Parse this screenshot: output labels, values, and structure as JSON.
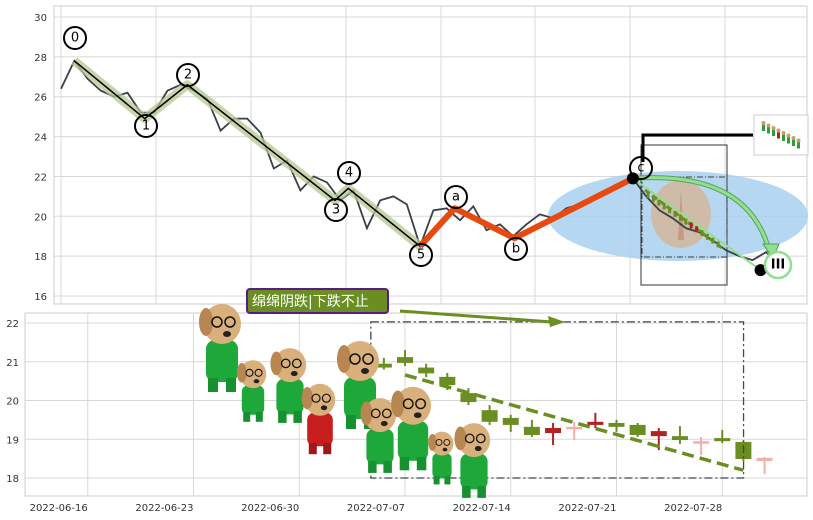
{
  "chart_data": [
    {
      "type": "line",
      "title": "",
      "ylim": [
        15.5,
        30.5
      ],
      "yticks": [
        16,
        18,
        20,
        22,
        24,
        26,
        28,
        30
      ],
      "grid": true,
      "series_color": "#3a3f48",
      "values": [
        26.4,
        27.8,
        26.9,
        26.3,
        26.0,
        26.2,
        25.2,
        25.2,
        26.3,
        26.6,
        26.3,
        25.9,
        24.3,
        24.9,
        24.9,
        24.2,
        22.4,
        22.8,
        21.3,
        22.0,
        21.7,
        20.8,
        21.3,
        19.4,
        20.8,
        21.0,
        20.6,
        18.5,
        20.3,
        20.4,
        19.8,
        20.5,
        19.3,
        19.6,
        19.0,
        19.6,
        20.1,
        19.9,
        20.4,
        20.6,
        20.9,
        21.2,
        21.5,
        21.9,
        21.0,
        20.3,
        19.9,
        19.4,
        19.2,
        18.8,
        18.3,
        18.0,
        17.8,
        18.2,
        17.6
      ],
      "impulse_waves": {
        "color": "#000000",
        "band_color": "#b5c78f",
        "points": [
          {
            "label": "0",
            "i": 1,
            "v": 27.8
          },
          {
            "label": "1",
            "i": 6.3,
            "v": 24.9
          },
          {
            "label": "2",
            "i": 9.5,
            "v": 26.6
          },
          {
            "label": "3",
            "i": 20.6,
            "v": 20.8
          },
          {
            "label": "4",
            "i": 21.6,
            "v": 21.4
          },
          {
            "label": "5",
            "i": 27,
            "v": 18.5
          }
        ]
      },
      "corrective_waves": {
        "color": "#e8490f",
        "points": [
          {
            "label": "5",
            "i": 27,
            "v": 18.5
          },
          {
            "label": "a",
            "i": 29.6,
            "v": 20.4
          },
          {
            "label": "b",
            "i": 34.1,
            "v": 18.9
          },
          {
            "label": "c",
            "i": 43,
            "v": 21.9
          }
        ]
      },
      "projection": {
        "label": "III",
        "from": {
          "i": 43,
          "v": 21.9
        },
        "to": {
          "i": 52.6,
          "v": 17.3
        },
        "color": "#90e090"
      },
      "highlight_color": "#a8d0ee"
    },
    {
      "type": "candlestick",
      "title": "",
      "ylim": [
        17.5,
        22.25
      ],
      "yticks": [
        18,
        19,
        20,
        21,
        22
      ],
      "grid": true,
      "xtick_labels": [
        "2022-06-16",
        "2022-06-23",
        "2022-06-30",
        "2022-07-07",
        "2022-07-14",
        "2022-07-21",
        "2022-07-28"
      ],
      "down_color": "#6b8e23",
      "up_color": "#b22222",
      "small_up_color": "#f0b0a8",
      "candles": [
        {
          "date": "2022-07-06",
          "o": 20.95,
          "h": 21.1,
          "l": 20.8,
          "c": 20.85,
          "kind": "down"
        },
        {
          "date": "2022-07-07",
          "o": 21.12,
          "h": 21.3,
          "l": 20.89,
          "c": 20.97,
          "kind": "down"
        },
        {
          "date": "2022-07-08",
          "o": 20.85,
          "h": 20.95,
          "l": 20.6,
          "c": 20.7,
          "kind": "down"
        },
        {
          "date": "2022-07-11",
          "o": 20.61,
          "h": 20.71,
          "l": 20.27,
          "c": 20.4,
          "kind": "down"
        },
        {
          "date": "2022-07-12",
          "o": 20.19,
          "h": 20.32,
          "l": 19.88,
          "c": 19.96,
          "kind": "down"
        },
        {
          "date": "2022-07-13",
          "o": 19.75,
          "h": 19.88,
          "l": 19.37,
          "c": 19.45,
          "kind": "down"
        },
        {
          "date": "2022-07-14",
          "o": 19.55,
          "h": 19.63,
          "l": 19.19,
          "c": 19.37,
          "kind": "down"
        },
        {
          "date": "2022-07-15",
          "o": 19.32,
          "h": 19.5,
          "l": 19.06,
          "c": 19.11,
          "kind": "down"
        },
        {
          "date": "2022-07-18",
          "o": 19.16,
          "h": 19.42,
          "l": 18.85,
          "c": 19.29,
          "kind": "up"
        },
        {
          "date": "2022-07-19",
          "o": 19.27,
          "h": 19.45,
          "l": 18.98,
          "c": 19.32,
          "kind": "small_up"
        },
        {
          "date": "2022-07-20",
          "o": 19.37,
          "h": 19.68,
          "l": 19.29,
          "c": 19.45,
          "kind": "up"
        },
        {
          "date": "2022-07-21",
          "o": 19.42,
          "h": 19.5,
          "l": 19.19,
          "c": 19.32,
          "kind": "down"
        },
        {
          "date": "2022-07-22",
          "o": 19.37,
          "h": 19.42,
          "l": 19.06,
          "c": 19.11,
          "kind": "down"
        },
        {
          "date": "2022-07-25",
          "o": 19.08,
          "h": 19.29,
          "l": 18.72,
          "c": 19.21,
          "kind": "up"
        },
        {
          "date": "2022-07-26",
          "o": 19.08,
          "h": 19.34,
          "l": 18.88,
          "c": 18.98,
          "kind": "down"
        },
        {
          "date": "2022-07-27",
          "o": 18.93,
          "h": 19.06,
          "l": 18.59,
          "c": 18.95,
          "kind": "small_up"
        },
        {
          "date": "2022-07-28",
          "o": 19.03,
          "h": 19.24,
          "l": 18.9,
          "c": 18.95,
          "kind": "down"
        },
        {
          "date": "2022-07-29",
          "o": 18.93,
          "h": 18.96,
          "l": 18.44,
          "c": 18.49,
          "kind": "down"
        },
        {
          "date": "2022-08-01",
          "o": 18.44,
          "h": 18.54,
          "l": 18.1,
          "c": 18.52,
          "kind": "small_up"
        }
      ],
      "trendline": {
        "from": {
          "date": "2022-07-07",
          "v": 20.66
        },
        "to": {
          "date": "2022-07-29",
          "v": 18.2
        },
        "style": "dashed",
        "color": "#6b8e23"
      },
      "box": {
        "from": "2022-07-06",
        "to": "2022-08-01",
        "v_low": 18.0,
        "v_high": 22.03,
        "style": "dash-dot"
      },
      "annotation": {
        "text": "绵绵阴跌|下跌不止",
        "bg": "#6b8e23",
        "border": "#5a1a8a"
      }
    }
  ]
}
